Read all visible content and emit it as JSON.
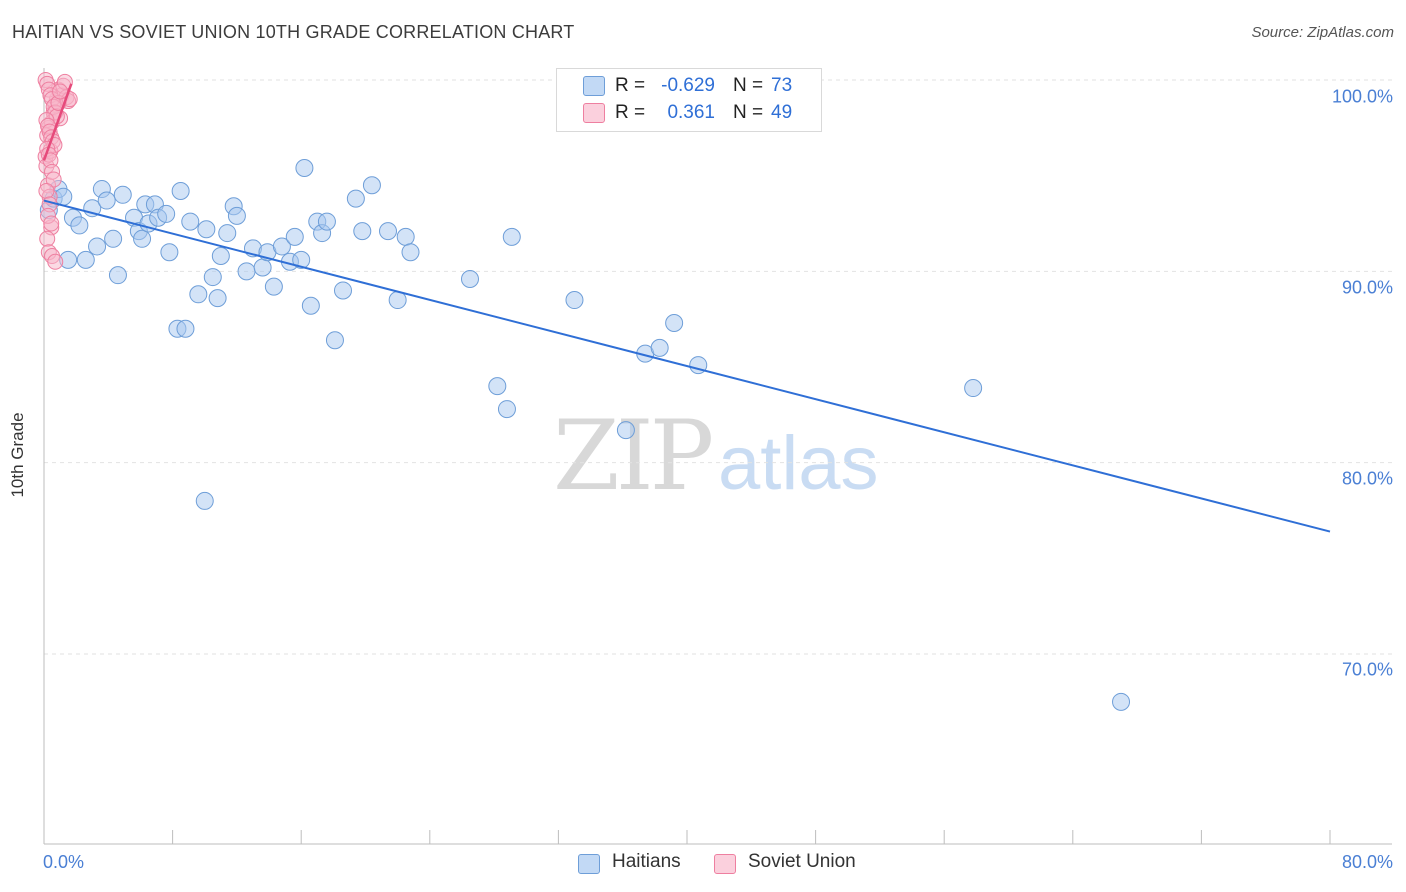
{
  "header": {
    "title": "HAITIAN VS SOVIET UNION 10TH GRADE CORRELATION CHART",
    "source": "Source: ZipAtlas.com"
  },
  "watermark": {
    "zip": "ZIP",
    "atlas": "atlas"
  },
  "stats": {
    "haitians": {
      "r_label": "R =",
      "r_value": "-0.629",
      "n_label": "N =",
      "n_value": "73",
      "color": "#a8c8f0"
    },
    "soviet": {
      "r_label": "R =",
      "r_value": "0.361",
      "n_label": "N =",
      "n_value": "49",
      "color": "#f7b6ca"
    }
  },
  "legend": {
    "haitians": "Haitians",
    "soviet": "Soviet Union"
  },
  "axis_text": {
    "ylabel": "10th Grade",
    "x_left": "0.0%",
    "x_right": "80.0%",
    "y_ticks": [
      "100.0%",
      "90.0%",
      "80.0%",
      "70.0%"
    ]
  },
  "colors": {
    "blue_fill": "#a8c8f0",
    "blue_stroke": "#6e9ed8",
    "blue_line": "#2f6fd6",
    "pink_fill": "#f7b6ca",
    "pink_stroke": "#ee7fa0",
    "pink_line": "#e64a7b",
    "grid": "#e2e2e2",
    "tick_text": "#4a7fd4"
  },
  "chart_data": {
    "type": "scatter",
    "title": "HAITIAN VS SOVIET UNION 10TH GRADE CORRELATION CHART",
    "xlabel": "",
    "ylabel": "10th Grade",
    "xlim": [
      0,
      80
    ],
    "ylim": [
      60,
      102
    ],
    "y_gridlines": [
      100,
      90,
      80,
      70
    ],
    "series": [
      {
        "name": "Haitians",
        "r": -0.629,
        "n": 73,
        "trend": {
          "x": [
            0,
            80
          ],
          "y": [
            93.7,
            76.4
          ]
        },
        "points": [
          [
            0.3,
            93.2
          ],
          [
            0.6,
            93.8
          ],
          [
            0.9,
            94.3
          ],
          [
            1.2,
            93.9
          ],
          [
            1.5,
            90.6
          ],
          [
            1.8,
            92.8
          ],
          [
            2.2,
            92.4
          ],
          [
            2.6,
            90.6
          ],
          [
            3.0,
            93.3
          ],
          [
            3.3,
            91.3
          ],
          [
            3.6,
            94.3
          ],
          [
            3.9,
            93.7
          ],
          [
            4.3,
            91.7
          ],
          [
            4.6,
            89.8
          ],
          [
            4.9,
            94.0
          ],
          [
            5.6,
            92.8
          ],
          [
            5.9,
            92.1
          ],
          [
            6.1,
            91.7
          ],
          [
            6.3,
            93.5
          ],
          [
            6.5,
            92.5
          ],
          [
            6.9,
            93.5
          ],
          [
            7.1,
            92.8
          ],
          [
            7.6,
            93.0
          ],
          [
            7.8,
            91.0
          ],
          [
            8.3,
            87.0
          ],
          [
            8.5,
            94.2
          ],
          [
            8.8,
            87.0
          ],
          [
            9.1,
            92.6
          ],
          [
            9.6,
            88.8
          ],
          [
            10.1,
            92.2
          ],
          [
            10.5,
            89.7
          ],
          [
            10.8,
            88.6
          ],
          [
            11.0,
            90.8
          ],
          [
            11.4,
            92.0
          ],
          [
            11.8,
            93.4
          ],
          [
            12.0,
            92.9
          ],
          [
            12.6,
            90.0
          ],
          [
            13.0,
            91.2
          ],
          [
            13.6,
            90.2
          ],
          [
            13.9,
            91.0
          ],
          [
            14.3,
            89.2
          ],
          [
            14.8,
            91.3
          ],
          [
            15.3,
            90.5
          ],
          [
            15.6,
            91.8
          ],
          [
            16.0,
            90.6
          ],
          [
            16.2,
            95.4
          ],
          [
            16.6,
            88.2
          ],
          [
            17.0,
            92.6
          ],
          [
            17.3,
            92.0
          ],
          [
            17.6,
            92.6
          ],
          [
            18.1,
            86.4
          ],
          [
            18.6,
            89.0
          ],
          [
            19.4,
            93.8
          ],
          [
            19.8,
            92.1
          ],
          [
            20.4,
            94.5
          ],
          [
            21.4,
            92.1
          ],
          [
            22.0,
            88.5
          ],
          [
            22.5,
            91.8
          ],
          [
            22.8,
            91.0
          ],
          [
            26.5,
            89.6
          ],
          [
            28.2,
            84.0
          ],
          [
            28.8,
            82.8
          ],
          [
            29.1,
            91.8
          ],
          [
            32.5,
            100.0
          ],
          [
            33.0,
            88.5
          ],
          [
            36.2,
            81.7
          ],
          [
            37.4,
            85.7
          ],
          [
            38.3,
            86.0
          ],
          [
            39.2,
            87.3
          ],
          [
            40.7,
            85.1
          ],
          [
            57.8,
            83.9
          ],
          [
            67.0,
            67.5
          ],
          [
            10.0,
            78.0
          ]
        ]
      },
      {
        "name": "Soviet Union",
        "r": 0.361,
        "n": 49,
        "trend": {
          "x": [
            0,
            1.7
          ],
          "y": [
            95.8,
            99.8
          ]
        },
        "points": [
          [
            0.1,
            96.0
          ],
          [
            0.2,
            97.1
          ],
          [
            0.3,
            97.5
          ],
          [
            0.4,
            96.3
          ],
          [
            0.5,
            97.8
          ],
          [
            0.6,
            98.3
          ],
          [
            0.7,
            98.7
          ],
          [
            0.8,
            99.0
          ],
          [
            0.9,
            99.5
          ],
          [
            1.0,
            98.0
          ],
          [
            1.1,
            99.2
          ],
          [
            1.2,
            99.7
          ],
          [
            1.3,
            99.9
          ],
          [
            1.4,
            99.1
          ],
          [
            1.5,
            98.9
          ],
          [
            1.6,
            99.0
          ],
          [
            0.15,
            95.5
          ],
          [
            0.25,
            94.5
          ],
          [
            0.35,
            93.9
          ],
          [
            0.45,
            92.3
          ],
          [
            0.2,
            91.7
          ],
          [
            0.3,
            91.0
          ],
          [
            0.5,
            90.8
          ],
          [
            0.7,
            90.5
          ],
          [
            0.1,
            100.0
          ],
          [
            0.2,
            99.8
          ],
          [
            0.3,
            99.5
          ],
          [
            0.4,
            99.2
          ],
          [
            0.5,
            99.0
          ],
          [
            0.6,
            98.6
          ],
          [
            0.7,
            98.3
          ],
          [
            0.8,
            98.1
          ],
          [
            0.15,
            97.9
          ],
          [
            0.25,
            97.6
          ],
          [
            0.35,
            97.3
          ],
          [
            0.45,
            97.0
          ],
          [
            0.55,
            96.8
          ],
          [
            0.65,
            96.6
          ],
          [
            0.2,
            96.4
          ],
          [
            0.3,
            96.1
          ],
          [
            0.4,
            95.8
          ],
          [
            0.5,
            95.2
          ],
          [
            0.6,
            94.8
          ],
          [
            0.15,
            94.2
          ],
          [
            0.35,
            93.5
          ],
          [
            0.25,
            92.9
          ],
          [
            0.45,
            92.5
          ],
          [
            0.9,
            98.8
          ],
          [
            1.0,
            99.4
          ]
        ]
      }
    ]
  }
}
